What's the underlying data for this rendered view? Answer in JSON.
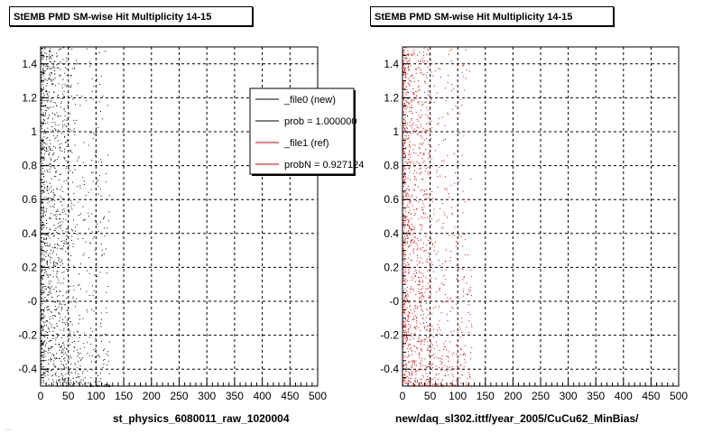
{
  "chart_data": [
    {
      "type": "scatter",
      "title": "StEMB PMD SM-wise Hit Multiplicity 14-15",
      "xlabel": "st_physics_6080011_raw_1020004",
      "ylabel": "",
      "xlim": [
        0,
        500
      ],
      "ylim": [
        -0.5,
        1.5
      ],
      "xticks": [
        0,
        50,
        100,
        150,
        200,
        250,
        300,
        350,
        400,
        450,
        500
      ],
      "ytick_labels": [
        {
          "value": -0.4,
          "label": "-0.4"
        },
        {
          "value": -0.2,
          "label": "-0.2"
        },
        {
          "value": 0.0,
          "label": "-0"
        },
        {
          "value": 0.2,
          "label": "0.2"
        },
        {
          "value": 0.4,
          "label": "0.4"
        },
        {
          "value": 0.6,
          "label": "0.6"
        },
        {
          "value": 0.8,
          "label": "0.8"
        },
        {
          "value": 1.0,
          "label": "1"
        },
        {
          "value": 1.2,
          "label": "1.2"
        },
        {
          "value": 1.4,
          "label": "1.4"
        }
      ],
      "grid": true,
      "series": [
        {
          "name": "_file0 (new)",
          "color": "#000000",
          "distribution": {
            "x_dense_max": 50,
            "x_sparse_max": 125
          }
        }
      ],
      "legend": {
        "position": "top-right",
        "entries": [
          {
            "label": "_file0 (new)",
            "color": "#000000"
          },
          {
            "label": "prob = 1.000000",
            "color": "#000000"
          },
          {
            "label": "_file1 (ref)",
            "color": "#cc0000"
          },
          {
            "label": "probN = 0.927124",
            "color": "#cc0000"
          }
        ]
      }
    },
    {
      "type": "scatter",
      "title": "StEMB PMD SM-wise Hit Multiplicity 14-15",
      "xlabel": "new/daq_sl302.ittf/year_2005/CuCu62_MinBias/",
      "ylabel": "",
      "xlim": [
        0,
        500
      ],
      "ylim": [
        -0.5,
        1.5
      ],
      "xticks": [
        0,
        50,
        100,
        150,
        200,
        250,
        300,
        350,
        400,
        450,
        500
      ],
      "ytick_labels": [
        {
          "value": -0.4,
          "label": "-0.4"
        },
        {
          "value": -0.2,
          "label": "-0.2"
        },
        {
          "value": 0.0,
          "label": "-0"
        },
        {
          "value": 0.2,
          "label": "0.2"
        },
        {
          "value": 0.4,
          "label": "0.4"
        },
        {
          "value": 0.6,
          "label": "0.6"
        },
        {
          "value": 0.8,
          "label": "0.8"
        },
        {
          "value": 1.0,
          "label": "1"
        },
        {
          "value": 1.2,
          "label": "1.2"
        },
        {
          "value": 1.4,
          "label": "1.4"
        }
      ],
      "grid": true,
      "series": [
        {
          "name": "_file1 (ref)",
          "color": "#cc0000",
          "distribution": {
            "x_dense_max": 50,
            "x_sparse_max": 125
          }
        }
      ]
    }
  ],
  "footer": "..."
}
